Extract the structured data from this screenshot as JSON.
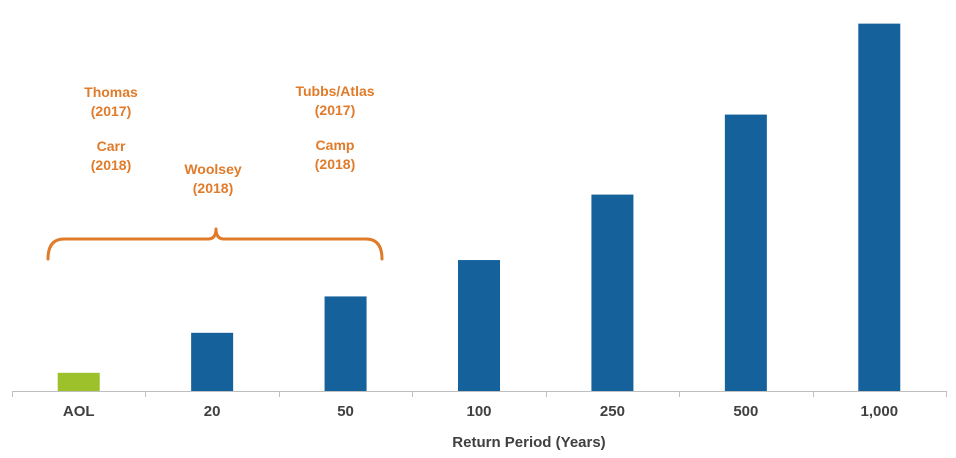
{
  "chart_data": {
    "type": "bar",
    "categories": [
      "AOL",
      "20",
      "50",
      "100",
      "250",
      "500",
      "1,000"
    ],
    "values": [
      0.5,
      1.6,
      2.6,
      3.6,
      5.4,
      7.6,
      10.1
    ],
    "highlight_index": 0,
    "colors": {
      "bar": "#15619b",
      "highlight": "#9dc12a",
      "annotation": "#e07b2a",
      "axis": "#bfbfbf",
      "text": "#404040"
    },
    "xlabel": "Return Period (Years)",
    "ylabel": "",
    "ylim": [
      0,
      10.2
    ],
    "grid": false,
    "annotations": [
      {
        "lines": [
          "Thomas",
          "(2017)"
        ],
        "category": "AOL"
      },
      {
        "lines": [
          "Carr",
          "(2018)"
        ],
        "category": "AOL"
      },
      {
        "lines": [
          "Woolsey",
          "(2018)"
        ],
        "category": "20"
      },
      {
        "lines": [
          "Tubbs/Atlas",
          "(2017)"
        ],
        "category": "50"
      },
      {
        "lines": [
          "Camp",
          "(2018)"
        ],
        "category": "50"
      }
    ],
    "brace": {
      "from": "AOL",
      "to": "50"
    }
  }
}
